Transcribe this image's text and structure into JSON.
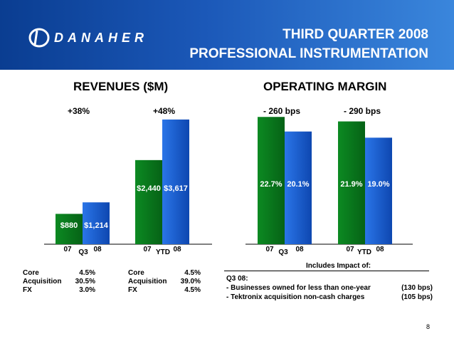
{
  "header": {
    "logo_text": "DANAHER",
    "title_line1": "THIRD QUARTER 2008",
    "title_line2": "PROFESSIONAL INSTRUMENTATION"
  },
  "revenues": {
    "title": "REVENUES ($M)",
    "q3_growth": "+38%",
    "ytd_growth": "+48%"
  },
  "margin": {
    "title": "OPERATING MARGIN",
    "q3_change": "- 260 bps",
    "ytd_change": "- 290 bps"
  },
  "colors": {
    "bar_07": "#0a7a1e",
    "bar_08": "#1a5fd0",
    "header": "#1b58b8"
  },
  "chart_data": [
    {
      "type": "bar",
      "title": "REVENUES ($M)",
      "groups": [
        "Q3",
        "YTD"
      ],
      "series": [
        {
          "name": "07",
          "values": [
            880,
            2440
          ],
          "labels": [
            "$880",
            "$2,440"
          ]
        },
        {
          "name": "08",
          "values": [
            1214,
            3617
          ],
          "labels": [
            "$1,214",
            "$3,617"
          ]
        }
      ],
      "ylim": [
        0,
        3800
      ]
    },
    {
      "type": "bar",
      "title": "OPERATING MARGIN",
      "groups": [
        "Q3",
        "YTD"
      ],
      "series": [
        {
          "name": "07",
          "values": [
            22.7,
            21.9
          ],
          "labels": [
            "22.7%",
            "21.9%"
          ]
        },
        {
          "name": "08",
          "values": [
            20.1,
            19.0
          ],
          "labels": [
            "20.1%",
            "19.0%"
          ]
        }
      ],
      "ylim": [
        0,
        24
      ]
    }
  ],
  "core_q3": [
    {
      "label": "Core",
      "value": "4.5%"
    },
    {
      "label": "Acquisition",
      "value": "30.5%"
    },
    {
      "label": "FX",
      "value": "3.0%"
    }
  ],
  "core_ytd": [
    {
      "label": "Core",
      "value": "4.5%"
    },
    {
      "label": "Acquisition",
      "value": "39.0%"
    },
    {
      "label": "FX",
      "value": "4.5%"
    }
  ],
  "impact": {
    "title": "Includes Impact of:",
    "heading": "Q3 08:",
    "items": [
      {
        "text": "- Businesses owned for less than one-year",
        "value": "(130 bps)"
      },
      {
        "text": "- Tektronix acquisition non-cash charges",
        "value": "(105 bps)"
      }
    ]
  },
  "page_number": "8"
}
